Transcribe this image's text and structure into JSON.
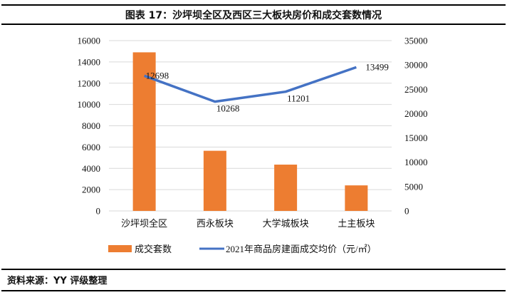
{
  "header": {
    "title": "图表 17：沙坪坝全区及西区三大板块房价和成交套数情况"
  },
  "footer": {
    "source": "资料来源：YY 评级整理"
  },
  "chart_data": {
    "type": "bar+line",
    "title": "图表 17：沙坪坝全区及西区三大板块房价和成交套数情况",
    "categories": [
      "沙坪坝全区",
      "西永板块",
      "大学城板块",
      "土主板块"
    ],
    "series": [
      {
        "name": "成交套数",
        "type": "bar",
        "color": "#ED7D31",
        "values": [
          14900,
          5650,
          4350,
          2400
        ]
      },
      {
        "name": "2021年商品房建面成交均价（元/㎡）",
        "type": "line",
        "color": "#4472C4",
        "values": [
          12698,
          10268,
          11201,
          13499
        ],
        "data_labels": [
          "12698",
          "10268",
          "11201",
          "13499"
        ]
      }
    ],
    "y_left": {
      "lim": [
        0,
        16000
      ],
      "ticks": [
        "0",
        "2000",
        "4000",
        "6000",
        "8000",
        "10000",
        "12000",
        "14000",
        "16000"
      ]
    },
    "y_right": {
      "lim": [
        0,
        35000
      ],
      "ticks": [
        "0",
        "5000",
        "10000",
        "15000",
        "20000",
        "25000",
        "30000",
        "35000"
      ]
    },
    "grid": true,
    "legend": "bottom"
  }
}
